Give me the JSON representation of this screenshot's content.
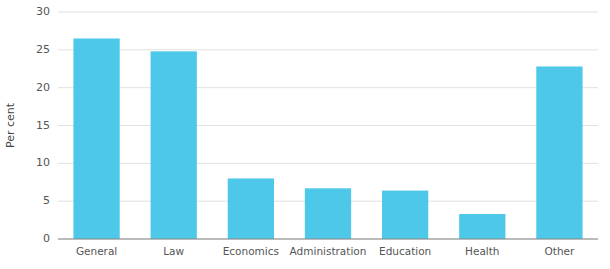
{
  "chart_data": {
    "type": "bar",
    "ylabel": "Per cent",
    "categories": [
      "General",
      "Law",
      "Economics",
      "Administration",
      "Education",
      "Health",
      "Other"
    ],
    "values": [
      26.5,
      24.8,
      8.0,
      6.7,
      6.4,
      3.3,
      22.8
    ],
    "color": "#4DC8E8",
    "ylim": [
      0,
      30
    ],
    "yticks": [
      0,
      5,
      10,
      15,
      20,
      25,
      30
    ],
    "grid": true
  }
}
